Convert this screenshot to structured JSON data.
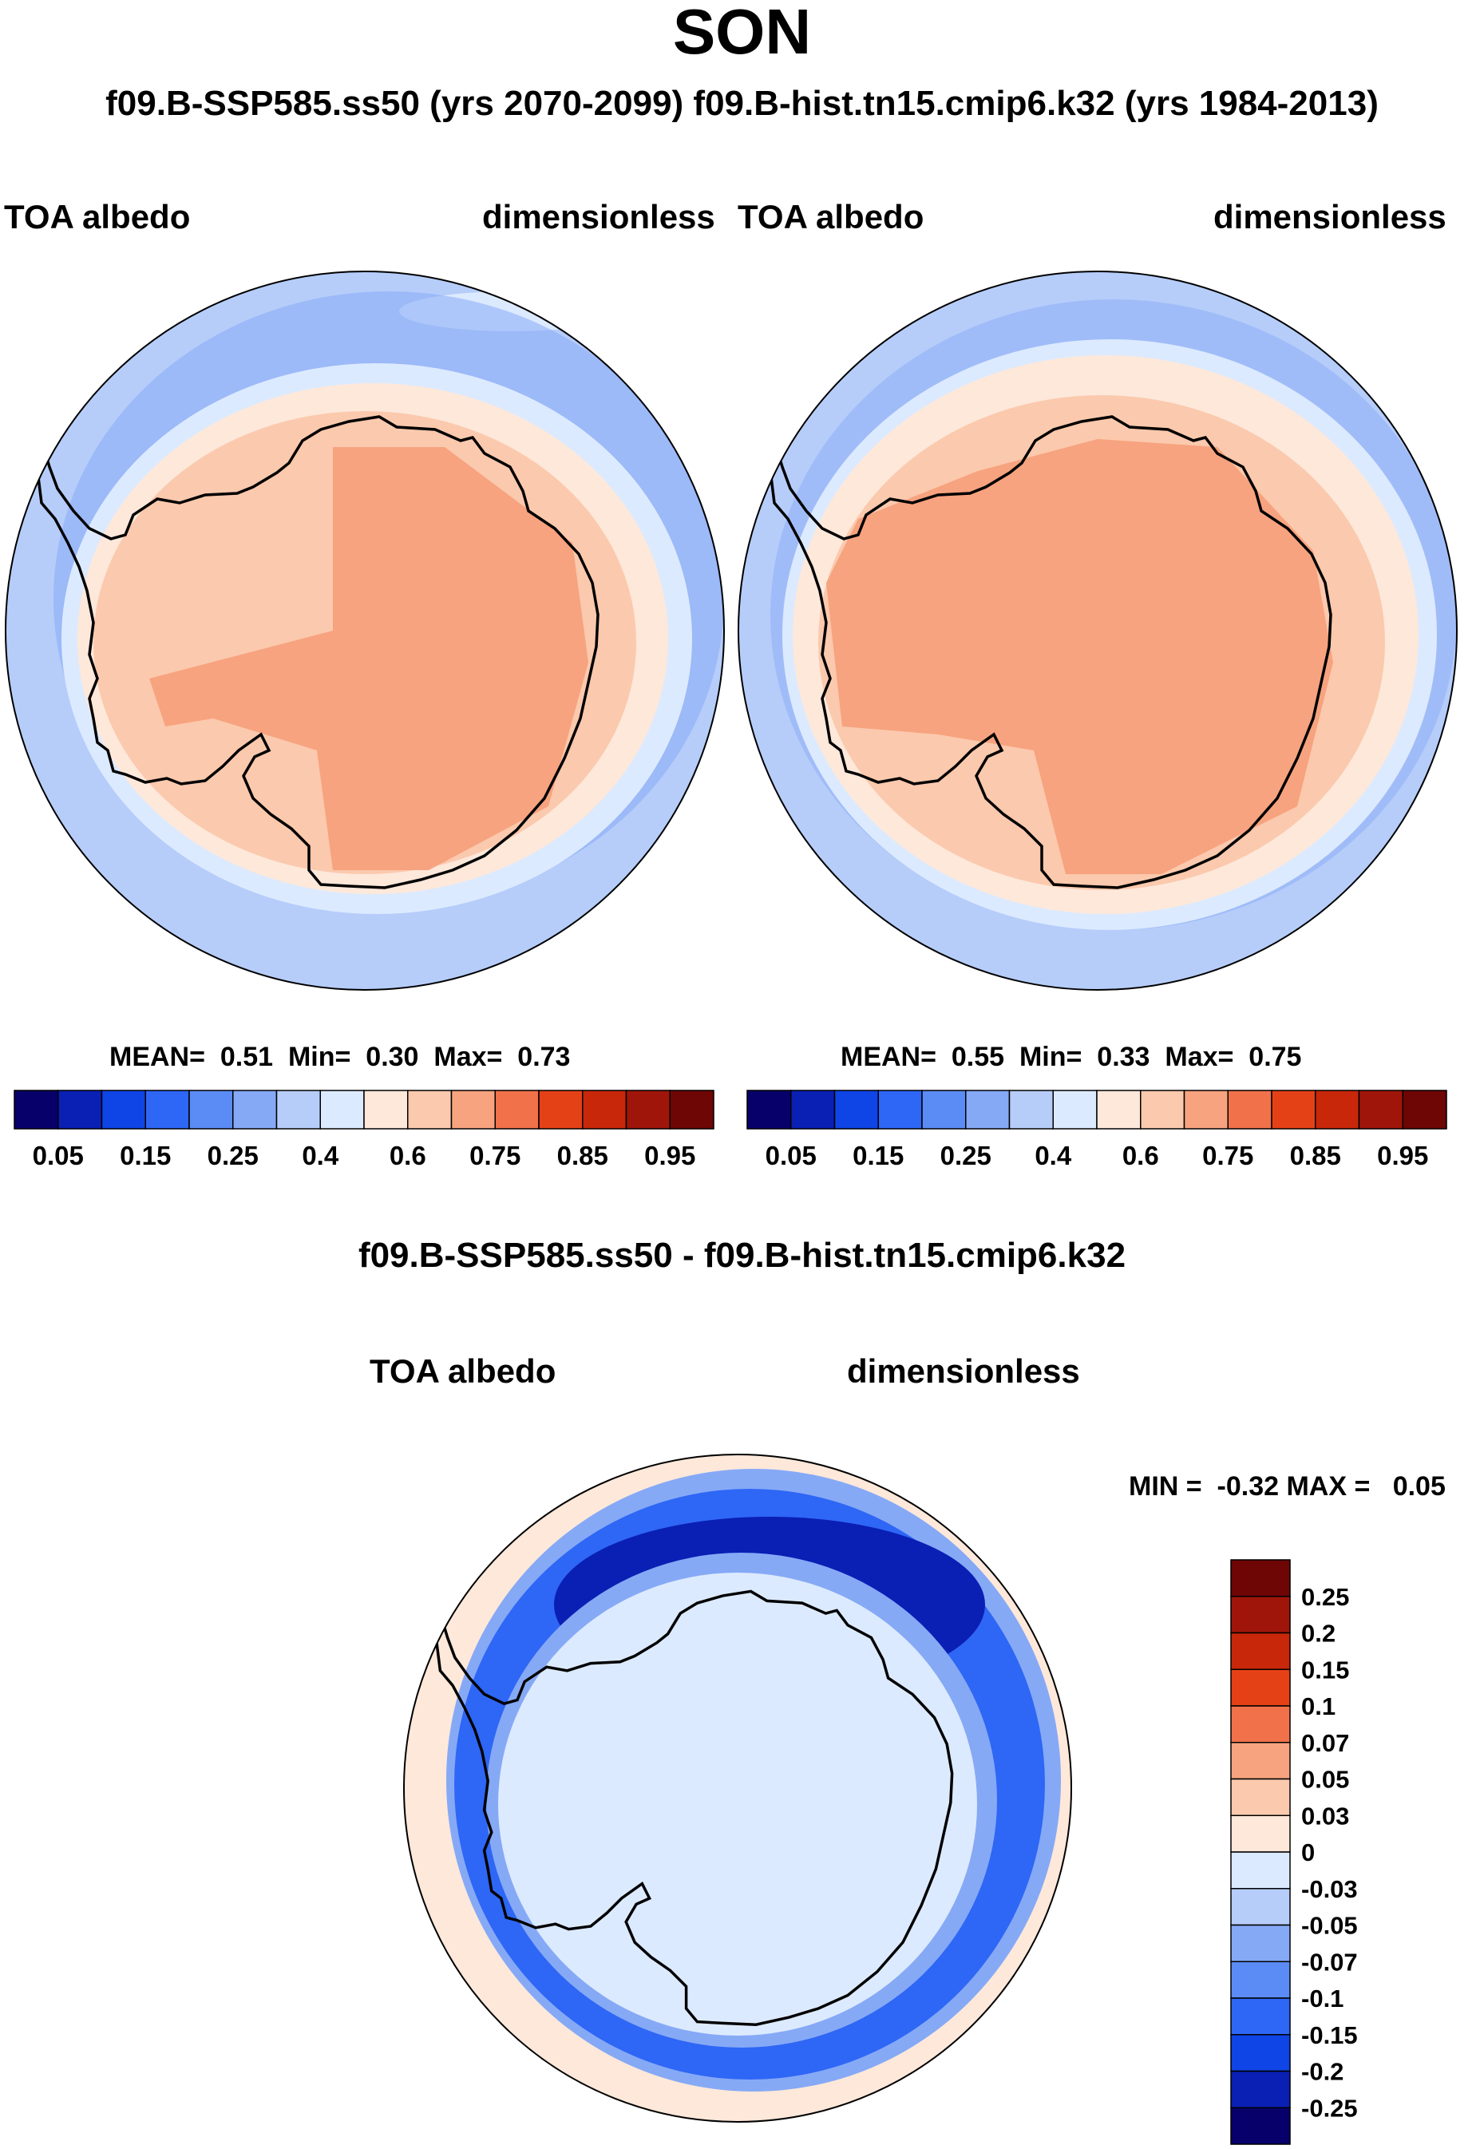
{
  "title": "SON",
  "case_line": "f09.B-SSP585.ss50 (yrs 2070-2099)  f09.B-hist.tn15.cmip6.k32 (yrs 1984-2013)",
  "panels": [
    {
      "id": "ssp585",
      "variable": "TOA albedo",
      "units": "dimensionless",
      "stats": {
        "mean_label": "MEAN=",
        "mean": "0.51",
        "min_label": "Min=",
        "min": "0.30",
        "max_label": "Max=",
        "max": "0.73"
      }
    },
    {
      "id": "hist",
      "variable": "TOA albedo",
      "units": "dimensionless",
      "stats": {
        "mean_label": "MEAN=",
        "mean": "0.55",
        "min_label": "Min=",
        "min": "0.33",
        "max_label": "Max=",
        "max": "0.75"
      }
    }
  ],
  "colorbar_top": {
    "colors": [
      "#08006a",
      "#0a1fb4",
      "#0f45e6",
      "#2e66f5",
      "#5b8cf5",
      "#86a9f6",
      "#b6cdfa",
      "#dceaff",
      "#fde8da",
      "#fbc9ad",
      "#f7a37f",
      "#f1714a",
      "#e54117",
      "#c8270a",
      "#a0150a",
      "#6e0605"
    ],
    "tick_labels": [
      "0.05",
      "0.15",
      "0.25",
      "0.4",
      "0.6",
      "0.75",
      "0.85",
      "0.95"
    ]
  },
  "difference": {
    "title": "f09.B-SSP585.ss50 - f09.B-hist.tn15.cmip6.k32",
    "variable": "TOA albedo",
    "units": "dimensionless",
    "range": {
      "min_label": "MIN =",
      "min": "-0.32",
      "max_label": "MAX =",
      "max": "0.05"
    },
    "colorbar": {
      "colors_top_to_bottom": [
        "#6e0605",
        "#a0150a",
        "#c8270a",
        "#e54117",
        "#f1714a",
        "#f7a37f",
        "#fbc9ad",
        "#fde8da",
        "#dceaff",
        "#b6cdfa",
        "#86a9f6",
        "#5b8cf5",
        "#2e66f5",
        "#0f45e6",
        "#0a1fb4",
        "#08006a"
      ],
      "tick_labels": [
        "0.25",
        "0.2",
        "0.15",
        "0.1",
        "0.07",
        "0.05",
        "0.03",
        "0",
        "-0.03",
        "-0.05",
        "-0.07",
        "-0.1",
        "-0.15",
        "-0.2",
        "-0.25"
      ]
    }
  },
  "map_colors": {
    "ocean_outer": "#b6cdfa",
    "ocean_mid": "#86a9f6",
    "ocean_light": "#dceaff",
    "sea_ice_light": "#fde8da",
    "sea_ice": "#fbc9ad",
    "continent": "#f7a37f",
    "diff_bg": "#fde8da",
    "diff_ring1": "#86a9f6",
    "diff_ring2": "#2e66f5",
    "diff_ring3": "#0a1fb4",
    "diff_inner": "#dceaff"
  }
}
